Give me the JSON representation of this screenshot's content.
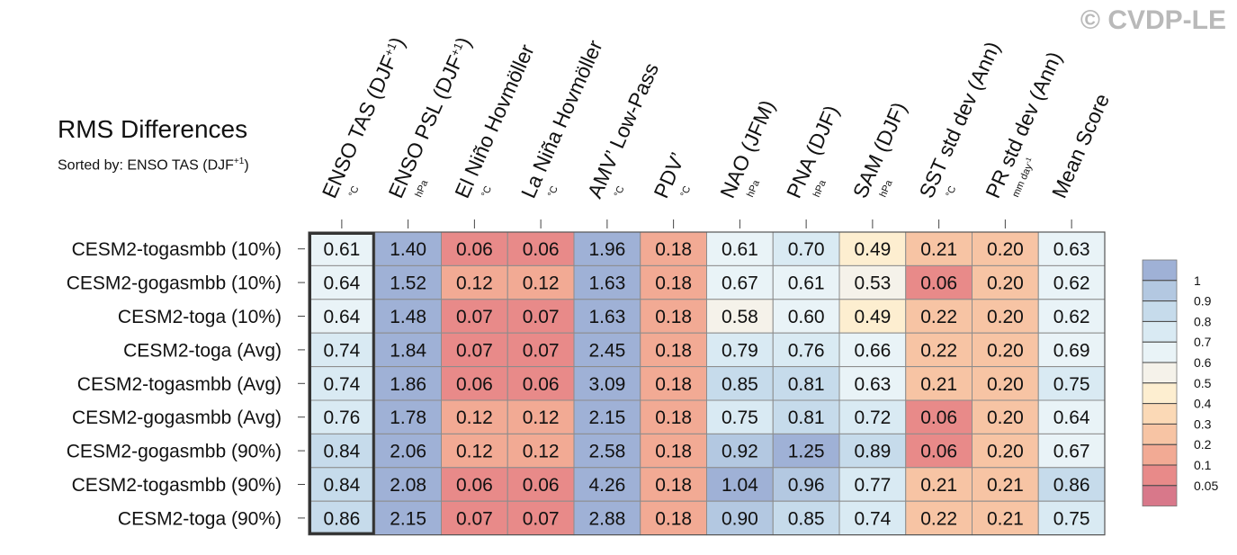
{
  "watermark": "© CVDP-LE",
  "title": "RMS Differences",
  "subtitle": {
    "prefix": "Sorted by: ENSO TAS (DJF",
    "sup": "+1",
    "suffix": ")"
  },
  "chart_data": {
    "type": "heatmap",
    "columns": [
      {
        "label": "ENSO TAS (DJF",
        "sup": "+1",
        "after": ")",
        "unit": "°C"
      },
      {
        "label": "ENSO PSL (DJF",
        "sup": "+1",
        "after": ")",
        "unit": "hPa"
      },
      {
        "label": "El Niño Hovmöller",
        "unit": "°C"
      },
      {
        "label": "La Niña Hovmöller",
        "unit": "°C"
      },
      {
        "label": "AMV’ Low-Pass",
        "unit": "°C"
      },
      {
        "label": "PDV’",
        "unit": "°C"
      },
      {
        "label": "NAO (JFM)",
        "unit": "hPa"
      },
      {
        "label": "PNA (DJF)",
        "unit": "hPa"
      },
      {
        "label": "SAM (DJF)",
        "unit": "hPa"
      },
      {
        "label": "SST std dev (Ann)",
        "unit": "°C"
      },
      {
        "label": "PR std dev (Ann)",
        "unit": "mm day",
        "unit_sup": "-1"
      },
      {
        "label": "Mean Score",
        "unit": ""
      }
    ],
    "rows": [
      "CESM2-togasmbb (10%)",
      "CESM2-gogasmbb (10%)",
      "CESM2-toga (10%)",
      "CESM2-toga (Avg)",
      "CESM2-togasmbb (Avg)",
      "CESM2-gogasmbb (Avg)",
      "CESM2-gogasmbb (90%)",
      "CESM2-togasmbb (90%)",
      "CESM2-toga (90%)"
    ],
    "values": [
      [
        "0.61",
        "1.40",
        "0.06",
        "0.06",
        "1.96",
        "0.18",
        "0.61",
        "0.70",
        "0.49",
        "0.21",
        "0.20",
        "0.63"
      ],
      [
        "0.64",
        "1.52",
        "0.12",
        "0.12",
        "1.63",
        "0.18",
        "0.67",
        "0.61",
        "0.53",
        "0.06",
        "0.20",
        "0.62"
      ],
      [
        "0.64",
        "1.48",
        "0.07",
        "0.07",
        "1.63",
        "0.18",
        "0.58",
        "0.60",
        "0.49",
        "0.22",
        "0.20",
        "0.62"
      ],
      [
        "0.74",
        "1.84",
        "0.07",
        "0.07",
        "2.45",
        "0.18",
        "0.79",
        "0.76",
        "0.66",
        "0.22",
        "0.20",
        "0.69"
      ],
      [
        "0.74",
        "1.86",
        "0.06",
        "0.06",
        "3.09",
        "0.18",
        "0.85",
        "0.81",
        "0.63",
        "0.21",
        "0.20",
        "0.75"
      ],
      [
        "0.76",
        "1.78",
        "0.12",
        "0.12",
        "2.15",
        "0.18",
        "0.75",
        "0.81",
        "0.72",
        "0.06",
        "0.20",
        "0.64"
      ],
      [
        "0.84",
        "2.06",
        "0.12",
        "0.12",
        "2.58",
        "0.18",
        "0.92",
        "1.25",
        "0.89",
        "0.06",
        "0.20",
        "0.67"
      ],
      [
        "0.84",
        "2.08",
        "0.06",
        "0.06",
        "4.26",
        "0.18",
        "1.04",
        "0.96",
        "0.77",
        "0.21",
        "0.21",
        "0.86"
      ],
      [
        "0.86",
        "2.15",
        "0.07",
        "0.07",
        "2.88",
        "0.18",
        "0.90",
        "0.85",
        "0.74",
        "0.22",
        "0.21",
        "0.75"
      ]
    ],
    "highlight_column": 0,
    "colorbar": {
      "levels": [
        "1",
        "0.9",
        "0.8",
        "0.7",
        "0.6",
        "0.5",
        "0.4",
        "0.3",
        "0.2",
        "0.1",
        "0.05"
      ],
      "colors": [
        "#9fb1d6",
        "#b3c8e1",
        "#c6dbeb",
        "#d9eaf3",
        "#e9f3f7",
        "#f5f2ea",
        "#fdeed0",
        "#fbd9b6",
        "#f7c4a4",
        "#f2aa94",
        "#e88a89",
        "#d8788a"
      ]
    }
  }
}
